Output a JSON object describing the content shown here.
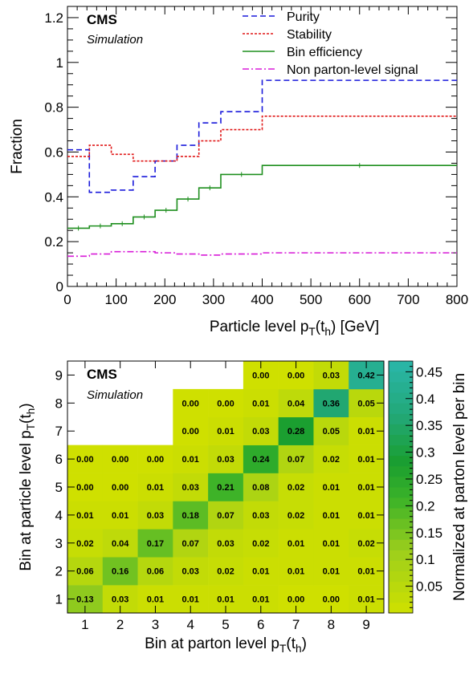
{
  "chart_data": [
    {
      "type": "line",
      "xlabel": "Particle level p_T(t_h) [GeV]",
      "ylabel": "Fraction",
      "xlim": [
        0,
        800
      ],
      "ylim": [
        0,
        1.25
      ],
      "xticks": [
        "0",
        "100",
        "200",
        "300",
        "400",
        "500",
        "600",
        "700",
        "800"
      ],
      "yticks": [
        "0",
        "0.2",
        "0.4",
        "0.6",
        "0.8",
        "1",
        "1.2"
      ],
      "experiment": "CMS",
      "subtitle": "Simulation",
      "legend_position": "top-right",
      "bin_edges": [
        0,
        45,
        90,
        135,
        180,
        225,
        270,
        315,
        400,
        800
      ],
      "series": [
        {
          "name": "Purity",
          "color": "#1a1adb",
          "style": "dashed",
          "values": [
            0.61,
            0.42,
            0.43,
            0.49,
            0.56,
            0.63,
            0.73,
            0.78,
            0.92
          ]
        },
        {
          "name": "Stability",
          "color": "#e01818",
          "style": "dotted",
          "values": [
            0.58,
            0.63,
            0.59,
            0.56,
            0.56,
            0.58,
            0.65,
            0.7,
            0.76
          ]
        },
        {
          "name": "Bin efficiency",
          "color": "#1f8f1f",
          "style": "solid",
          "values": [
            0.26,
            0.27,
            0.28,
            0.31,
            0.34,
            0.39,
            0.44,
            0.5,
            0.54
          ]
        },
        {
          "name": "Non parton-level signal",
          "color": "#d81bd8",
          "style": "dashdot",
          "values": [
            0.135,
            0.145,
            0.155,
            0.155,
            0.15,
            0.145,
            0.14,
            0.145,
            0.15
          ]
        }
      ]
    },
    {
      "type": "heatmap",
      "xlabel": "Bin at parton level p_T(t_h)",
      "ylabel": "Bin at particle level p_T(t_h)",
      "zlabel": "Normalized at parton level per bin",
      "experiment": "CMS",
      "subtitle": "Simulation",
      "x_categories": [
        "1",
        "2",
        "3",
        "4",
        "5",
        "6",
        "7",
        "8",
        "9"
      ],
      "y_categories": [
        "1",
        "2",
        "3",
        "4",
        "5",
        "6",
        "7",
        "8",
        "9"
      ],
      "zlim": [
        0,
        0.47
      ],
      "zticks": [
        "0.05",
        "0.1",
        "0.15",
        "0.2",
        "0.25",
        "0.3",
        "0.35",
        "0.4",
        "0.45"
      ],
      "cells": [
        [
          0.13,
          0.03,
          0.01,
          0.01,
          0.01,
          0.01,
          0.0,
          0.0,
          0.01
        ],
        [
          0.06,
          0.16,
          0.06,
          0.03,
          0.02,
          0.01,
          0.01,
          0.01,
          0.01
        ],
        [
          0.02,
          0.04,
          0.17,
          0.07,
          0.03,
          0.02,
          0.01,
          0.01,
          0.02
        ],
        [
          0.01,
          0.01,
          0.03,
          0.18,
          0.07,
          0.03,
          0.02,
          0.01,
          0.01
        ],
        [
          0.0,
          0.0,
          0.01,
          0.03,
          0.21,
          0.08,
          0.02,
          0.01,
          0.01
        ],
        [
          0.0,
          0.0,
          0.0,
          0.01,
          0.03,
          0.24,
          0.07,
          0.02,
          0.01
        ],
        [
          null,
          null,
          null,
          0.0,
          0.01,
          0.03,
          0.28,
          0.05,
          0.01
        ],
        [
          null,
          null,
          null,
          0.0,
          0.0,
          0.01,
          0.04,
          0.36,
          0.05
        ],
        [
          null,
          null,
          null,
          null,
          null,
          0.0,
          0.0,
          0.03,
          0.42
        ]
      ],
      "cell_labels": [
        [
          "0.13",
          "0.03",
          "0.01",
          "0.01",
          "0.01",
          "0.01",
          "0.00",
          "0.00",
          "0.01"
        ],
        [
          "0.06",
          "0.16",
          "0.06",
          "0.03",
          "0.02",
          "0.01",
          "0.01",
          "0.01",
          "0.01"
        ],
        [
          "0.02",
          "0.04",
          "0.17",
          "0.07",
          "0.03",
          "0.02",
          "0.01",
          "0.01",
          "0.02"
        ],
        [
          "0.01",
          "0.01",
          "0.03",
          "0.18",
          "0.07",
          "0.03",
          "0.02",
          "0.01",
          "0.01"
        ],
        [
          "0.00",
          "0.00",
          "0.01",
          "0.03",
          "0.21",
          "0.08",
          "0.02",
          "0.01",
          "0.01"
        ],
        [
          "0.00",
          "0.00",
          "0.00",
          "0.01",
          "0.03",
          "0.24",
          "0.07",
          "0.02",
          "0.01"
        ],
        [
          null,
          null,
          null,
          "0.00",
          "0.01",
          "0.03",
          "0.28",
          "0.05",
          "0.01"
        ],
        [
          null,
          null,
          null,
          "0.00",
          "0.00",
          "0.01",
          "0.04",
          "0.36",
          "0.05"
        ],
        [
          null,
          null,
          null,
          null,
          null,
          "0.00",
          "0.00",
          "0.03",
          "0.42"
        ]
      ]
    }
  ]
}
